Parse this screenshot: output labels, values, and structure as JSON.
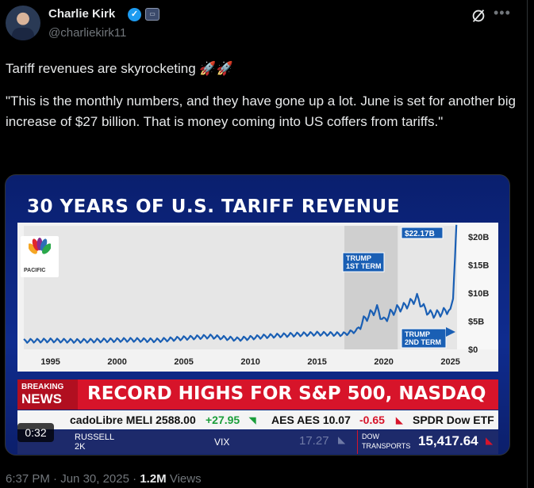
{
  "author": {
    "display_name": "Charlie Kirk",
    "handle": "@charliekirk11",
    "verified_icon": "check",
    "gov_badge_icon": "government-badge-icon"
  },
  "tweet": {
    "line1": "Tariff revenues are skyrocketing 🚀🚀",
    "quote": "\"This is the monthly numbers, and they have gone up a lot. June is set for another big increase of $27 billion. That is money coming into US coffers from tariffs.\""
  },
  "video": {
    "duration": "0:32",
    "title": "30 YEARS OF U.S. TARIFF REVENUE",
    "breaking_small": "BREAKING",
    "breaking_big": "NEWS",
    "headline": "RECORD HIGHS FOR S&P 500, NASDAQ",
    "ticker_top": [
      {
        "text": "cadoLibre MELI 2588.00",
        "color": "#111111"
      },
      {
        "text": "+27.95",
        "color": "#1a9e3a"
      },
      {
        "text": "AES AES 10.07",
        "color": "#111111"
      },
      {
        "text": "-0.65",
        "color": "#d7142a"
      },
      {
        "text": "SPDR Dow ETF",
        "color": "#111111"
      }
    ],
    "ticker_bottom": {
      "russell_1": "RUSSELL",
      "russell_2": "2K",
      "vix": "VIX",
      "vix_val": "17.27",
      "dow_1": "DOW",
      "dow_2": "TRANSPORTS",
      "dow_val": "15,417.64"
    },
    "logo_caption": "PACIFIC"
  },
  "chart_data": {
    "type": "line",
    "title": "30 YEARS OF U.S. TARIFF REVENUE",
    "x_ticks": [
      "1995",
      "2000",
      "2005",
      "2010",
      "2015",
      "2020",
      "2025"
    ],
    "y_ticks": [
      "$20B",
      "$15B",
      "$10B",
      "$5B",
      "$0"
    ],
    "ylim": [
      0,
      22
    ],
    "xlim": [
      1993,
      2025.5
    ],
    "annotations": {
      "peak_label": "$22.17B",
      "trump1": [
        "TRUMP",
        "1ST TERM"
      ],
      "trump2": [
        "TRUMP",
        "2ND TERM"
      ]
    },
    "shaded_ranges": [
      [
        2017.05,
        2021.05
      ]
    ],
    "series": [
      {
        "x": [
          1993,
          1995,
          1997,
          1999,
          2001,
          2003,
          2005,
          2007,
          2009,
          2011,
          2013,
          2015,
          2017,
          2018,
          2018.5,
          2019,
          2019.5,
          2020,
          2020.5,
          2021,
          2021.5,
          2022,
          2022.5,
          2023,
          2023.5,
          2024,
          2024.5,
          2025,
          2025.2,
          2025.35,
          2025.45
        ],
        "y": [
          1.5,
          1.6,
          1.5,
          1.6,
          1.7,
          1.6,
          2.0,
          2.3,
          1.8,
          2.3,
          2.6,
          2.8,
          2.7,
          3.4,
          5.2,
          6.3,
          7.2,
          5.0,
          6.4,
          7.2,
          7.6,
          8.3,
          9.2,
          7.4,
          6.3,
          6.3,
          6.7,
          7.2,
          9.0,
          16.5,
          22.17
        ]
      }
    ]
  },
  "meta": {
    "time": "6:37 PM",
    "date": "Jun 30, 2025",
    "dot": "·",
    "views_count": "1.2M",
    "views_label": "Views"
  }
}
